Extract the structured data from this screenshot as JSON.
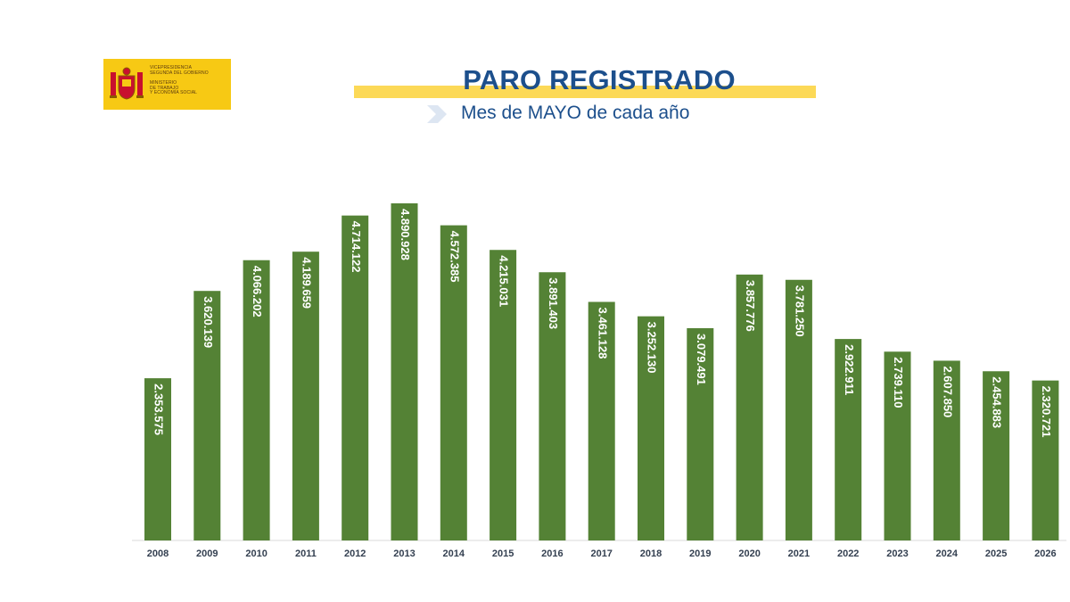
{
  "header": {
    "title": "PARO REGISTRADO",
    "subtitle": "Mes de MAYO de cada año"
  },
  "logo": {
    "lines_top": [
      "VICEPRESIDENCIA",
      "SEGUNDA DEL GOBIERNO"
    ],
    "lines_bottom": [
      "MINISTERIO",
      "DE TRABAJO",
      "Y ECONOMÍA SOCIAL"
    ],
    "background": "#f7c914"
  },
  "colors": {
    "bar": "#548235",
    "title": "#1c4f8c",
    "highlight": "#fcd957"
  },
  "chart_data": {
    "type": "bar",
    "categories": [
      "2008",
      "2009",
      "2010",
      "2011",
      "2012",
      "2013",
      "2014",
      "2015",
      "2016",
      "2017",
      "2018",
      "2019",
      "2020",
      "2021",
      "2022",
      "2023",
      "2024",
      "2025",
      "2026"
    ],
    "values": [
      2353575,
      3620139,
      4066202,
      4189659,
      4714122,
      4890928,
      4572385,
      4215031,
      3891403,
      3461128,
      3252130,
      3079491,
      3857776,
      3781250,
      2922911,
      2739110,
      2607850,
      2454883,
      2320721
    ],
    "labels": [
      "2.353.575",
      "3.620.139",
      "4.066.202",
      "4.189.659",
      "4.714.122",
      "4.890.928",
      "4.572.385",
      "4.215.031",
      "3.891.403",
      "3.461.128",
      "3.252.130",
      "3.079.491",
      "3.857.776",
      "3.781.250",
      "2.922.911",
      "2.739.110",
      "2.607.850",
      "2.454.883",
      "2.320.721"
    ],
    "ylim": [
      0,
      5000000
    ],
    "grid": false,
    "legend": "none"
  }
}
